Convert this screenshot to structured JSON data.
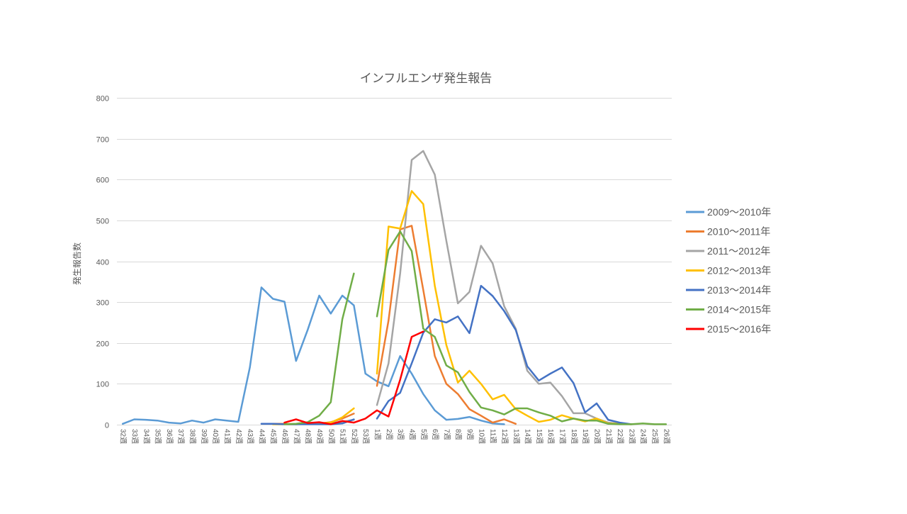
{
  "chart_data": {
    "type": "line",
    "title": "インフルエンザ発生報告",
    "xlabel": "",
    "ylabel": "発生報告数",
    "ylim": [
      0,
      800
    ],
    "yticks": [
      0,
      100,
      200,
      300,
      400,
      500,
      600,
      700,
      800
    ],
    "grid": true,
    "legend_position": "right",
    "categories": [
      "32週",
      "33週",
      "34週",
      "35週",
      "36週",
      "37週",
      "38週",
      "39週",
      "40週",
      "41週",
      "42週",
      "43週",
      "44週",
      "45週",
      "46週",
      "47週",
      "48週",
      "49週",
      "50週",
      "51週",
      "52週",
      "53週",
      "1週",
      "2週",
      "3週",
      "4週",
      "5週",
      "6週",
      "7週",
      "8週",
      "9週",
      "10週",
      "11週",
      "12週",
      "13週",
      "14週",
      "15週",
      "16週",
      "17週",
      "18週",
      "19週",
      "20週",
      "21週",
      "22週",
      "23週",
      "24週",
      "25週",
      "26週"
    ],
    "series": [
      {
        "name": "2009～2010年",
        "color": "#5B9BD5",
        "values": [
          2,
          13,
          12,
          10,
          5,
          3,
          10,
          5,
          13,
          10,
          7,
          140,
          336,
          308,
          301,
          156,
          232,
          316,
          272,
          316,
          292,
          125,
          106,
          94,
          168,
          125,
          75,
          35,
          12,
          14,
          19,
          10,
          3,
          1,
          null,
          null,
          null,
          null,
          null,
          null,
          null,
          null,
          null,
          null,
          null,
          null,
          null,
          null
        ]
      },
      {
        "name": "2010～2011年",
        "color": "#ED7D31",
        "values": [
          null,
          null,
          null,
          null,
          null,
          null,
          null,
          null,
          null,
          null,
          null,
          null,
          null,
          2,
          2,
          1,
          2,
          3,
          6,
          15,
          27,
          null,
          95,
          255,
          478,
          487,
          330,
          168,
          100,
          75,
          38,
          22,
          5,
          13,
          2,
          null,
          null,
          null,
          null,
          null,
          null,
          null,
          null,
          null,
          null,
          null,
          null,
          null
        ]
      },
      {
        "name": "2011～2012年",
        "color": "#A5A5A5",
        "values": [
          null,
          null,
          null,
          null,
          null,
          null,
          null,
          null,
          null,
          null,
          null,
          null,
          null,
          null,
          1,
          1,
          2,
          2,
          4,
          7,
          12,
          null,
          48,
          150,
          370,
          648,
          670,
          612,
          450,
          297,
          325,
          438,
          395,
          290,
          235,
          132,
          100,
          103,
          70,
          28,
          28,
          15,
          5,
          2,
          1,
          null,
          null,
          null
        ]
      },
      {
        "name": "2012～2013年",
        "color": "#FFC000",
        "values": [
          null,
          null,
          null,
          null,
          null,
          null,
          null,
          null,
          null,
          null,
          null,
          null,
          null,
          1,
          1,
          1,
          2,
          3,
          5,
          18,
          40,
          null,
          125,
          485,
          480,
          572,
          540,
          340,
          195,
          103,
          132,
          100,
          62,
          73,
          38,
          22,
          7,
          12,
          23,
          15,
          8,
          15,
          3,
          2,
          1,
          null,
          null,
          null
        ]
      },
      {
        "name": "2013～2014年",
        "color": "#4472C4",
        "values": [
          null,
          null,
          null,
          null,
          null,
          null,
          null,
          null,
          null,
          null,
          null,
          null,
          2,
          2,
          1,
          1,
          1,
          1,
          1,
          3,
          13,
          null,
          15,
          58,
          78,
          150,
          225,
          258,
          250,
          265,
          224,
          340,
          315,
          278,
          232,
          143,
          108,
          125,
          140,
          102,
          30,
          52,
          12,
          5,
          1,
          null,
          null,
          null
        ]
      },
      {
        "name": "2014～2015年",
        "color": "#70AD47",
        "values": [
          null,
          null,
          null,
          null,
          null,
          null,
          null,
          null,
          null,
          null,
          null,
          null,
          null,
          null,
          1,
          2,
          6,
          22,
          55,
          258,
          370,
          null,
          265,
          428,
          473,
          425,
          235,
          215,
          145,
          128,
          80,
          42,
          35,
          25,
          40,
          40,
          30,
          22,
          8,
          15,
          10,
          10,
          2,
          1,
          1,
          3,
          1,
          1
        ]
      },
      {
        "name": "2015～2016年",
        "color": "#FF0000",
        "values": [
          null,
          null,
          null,
          null,
          null,
          null,
          null,
          null,
          null,
          null,
          null,
          null,
          null,
          null,
          5,
          13,
          4,
          6,
          1,
          9,
          5,
          15,
          35,
          20,
          110,
          215,
          228,
          null,
          null,
          null,
          null,
          null,
          null,
          null,
          null,
          null,
          null,
          null,
          null,
          null,
          null,
          null,
          null,
          null,
          null,
          null,
          null,
          null
        ]
      }
    ]
  }
}
